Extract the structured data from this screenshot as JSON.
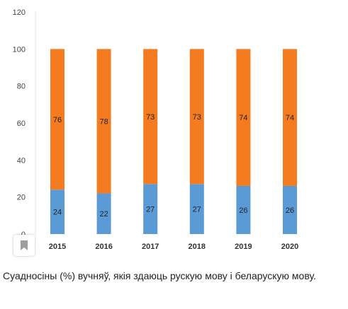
{
  "chart_data": {
    "type": "bar",
    "stacked": true,
    "categories": [
      "2015",
      "2016",
      "2017",
      "2018",
      "2019",
      "2020"
    ],
    "series": [
      {
        "values": [
          24,
          22,
          27,
          27,
          26,
          26
        ],
        "color": "#5b9bd5"
      },
      {
        "values": [
          76,
          78,
          73,
          73,
          74,
          74
        ],
        "color": "#f47b20"
      }
    ],
    "ylim": [
      0,
      120
    ],
    "yticks": [
      0,
      20,
      40,
      60,
      80,
      100,
      120
    ],
    "grid": false,
    "legend": "none"
  },
  "caption": "Суадносіны (%) вучняў, якія здаюць рускую мову і беларускую мову.",
  "bookmark_icon": "bookmark-icon"
}
